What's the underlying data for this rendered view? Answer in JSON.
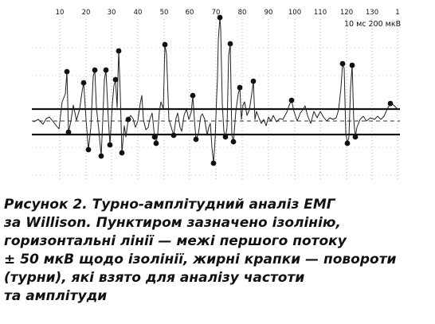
{
  "figure": {
    "tick_labels": [
      "10",
      "20",
      "30",
      "40",
      "50",
      "60",
      "70",
      "80",
      "90",
      "100",
      "110",
      "120",
      "130",
      "1"
    ],
    "scale_label": "10 мс 200 мкВ"
  },
  "caption": {
    "lines": [
      "Рисунок 2. Турно-амплітудний аналіз ЕМГ",
      "за Willison. Пунктиром зазначено ізолінію,",
      "горизонтальні лінії — межі першого потоку",
      "± 50 мкВ щодо ізолінії, жирні крапки — повороти",
      "(турни), які взято для аналізу частоти",
      "та амплітуди"
    ]
  }
}
